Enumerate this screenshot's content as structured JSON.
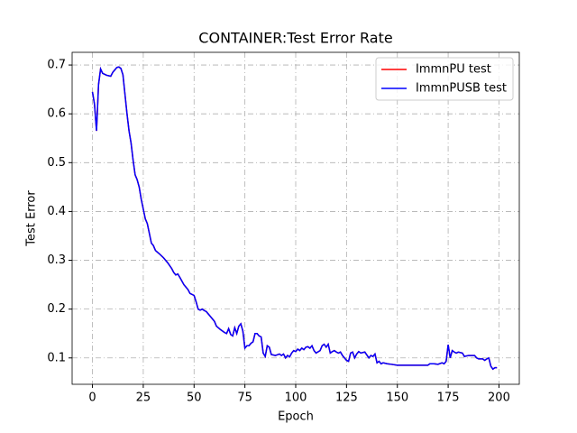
{
  "chart_data": {
    "type": "line",
    "title": "CONTAINER:Test Error Rate",
    "x_label": "Epoch",
    "y_label": "Test Error",
    "x": [
      0,
      1,
      2,
      3,
      4,
      5,
      7,
      9,
      10,
      12,
      13,
      14,
      15,
      16,
      17,
      18,
      19,
      20,
      21,
      22,
      23,
      24,
      25,
      26,
      27,
      28,
      29,
      30,
      31,
      33,
      35,
      37,
      39,
      40,
      41,
      42,
      43,
      45,
      47,
      48,
      50,
      51,
      52,
      53,
      54,
      55,
      56,
      58,
      60,
      61,
      63,
      65,
      66,
      67,
      68,
      69,
      70,
      71,
      72,
      73,
      74,
      75,
      76,
      77,
      78,
      79,
      80,
      81,
      82,
      83,
      84,
      85,
      86,
      87,
      88,
      90,
      92,
      93,
      94,
      95,
      96,
      97,
      98,
      99,
      100,
      101,
      102,
      103,
      104,
      105,
      106,
      107,
      108,
      109,
      110,
      112,
      113,
      114,
      115,
      116,
      117,
      118,
      119,
      120,
      121,
      122,
      123,
      125,
      126,
      127,
      128,
      129,
      130,
      131,
      132,
      134,
      136,
      137,
      138,
      139,
      140,
      141,
      142,
      143,
      145,
      147,
      150,
      155,
      160,
      165,
      166,
      168,
      170,
      172,
      173,
      174,
      175,
      176,
      177,
      178,
      179,
      180,
      182,
      183,
      185,
      187,
      188,
      189,
      190,
      192,
      193,
      194,
      195,
      196,
      197,
      198,
      199
    ],
    "series": [
      {
        "name": "ImmnPU test",
        "color": "#ff0000",
        "values": [
          0.645,
          0.62,
          0.565,
          0.66,
          0.692,
          0.683,
          0.679,
          0.677,
          0.685,
          0.695,
          0.696,
          0.693,
          0.68,
          0.64,
          0.6,
          0.565,
          0.54,
          0.505,
          0.475,
          0.465,
          0.45,
          0.425,
          0.405,
          0.385,
          0.375,
          0.355,
          0.335,
          0.33,
          0.32,
          0.313,
          0.305,
          0.295,
          0.283,
          0.275,
          0.27,
          0.272,
          0.265,
          0.25,
          0.24,
          0.232,
          0.228,
          0.215,
          0.2,
          0.198,
          0.2,
          0.197,
          0.195,
          0.185,
          0.175,
          0.165,
          0.158,
          0.152,
          0.15,
          0.16,
          0.148,
          0.145,
          0.162,
          0.15,
          0.165,
          0.17,
          0.155,
          0.12,
          0.125,
          0.125,
          0.13,
          0.133,
          0.15,
          0.15,
          0.145,
          0.143,
          0.11,
          0.103,
          0.125,
          0.122,
          0.107,
          0.105,
          0.108,
          0.105,
          0.108,
          0.1,
          0.105,
          0.102,
          0.11,
          0.115,
          0.113,
          0.118,
          0.115,
          0.12,
          0.117,
          0.122,
          0.123,
          0.12,
          0.125,
          0.115,
          0.11,
          0.115,
          0.125,
          0.128,
          0.122,
          0.128,
          0.11,
          0.113,
          0.115,
          0.112,
          0.11,
          0.112,
          0.105,
          0.095,
          0.093,
          0.11,
          0.112,
          0.1,
          0.108,
          0.113,
          0.11,
          0.112,
          0.1,
          0.105,
          0.103,
          0.108,
          0.09,
          0.093,
          0.088,
          0.09,
          0.088,
          0.087,
          0.085,
          0.085,
          0.085,
          0.085,
          0.088,
          0.088,
          0.087,
          0.09,
          0.088,
          0.093,
          0.127,
          0.1,
          0.115,
          0.112,
          0.11,
          0.112,
          0.11,
          0.103,
          0.105,
          0.105,
          0.105,
          0.1,
          0.098,
          0.098,
          0.095,
          0.098,
          0.1,
          0.083,
          0.077,
          0.08,
          0.08
        ]
      },
      {
        "name": "ImmnPUSB test",
        "color": "#0000ff",
        "values": [
          0.645,
          0.62,
          0.565,
          0.66,
          0.692,
          0.683,
          0.679,
          0.677,
          0.685,
          0.695,
          0.696,
          0.693,
          0.68,
          0.64,
          0.6,
          0.565,
          0.54,
          0.505,
          0.475,
          0.465,
          0.45,
          0.425,
          0.405,
          0.385,
          0.375,
          0.355,
          0.335,
          0.33,
          0.32,
          0.313,
          0.305,
          0.295,
          0.283,
          0.275,
          0.27,
          0.272,
          0.265,
          0.25,
          0.24,
          0.232,
          0.228,
          0.215,
          0.2,
          0.198,
          0.2,
          0.197,
          0.195,
          0.185,
          0.175,
          0.165,
          0.158,
          0.152,
          0.15,
          0.16,
          0.148,
          0.145,
          0.162,
          0.15,
          0.165,
          0.17,
          0.155,
          0.12,
          0.125,
          0.125,
          0.13,
          0.133,
          0.15,
          0.15,
          0.145,
          0.143,
          0.11,
          0.103,
          0.125,
          0.122,
          0.107,
          0.105,
          0.108,
          0.105,
          0.108,
          0.1,
          0.105,
          0.102,
          0.11,
          0.115,
          0.113,
          0.118,
          0.115,
          0.12,
          0.117,
          0.122,
          0.123,
          0.12,
          0.125,
          0.115,
          0.11,
          0.115,
          0.125,
          0.128,
          0.122,
          0.128,
          0.11,
          0.113,
          0.115,
          0.112,
          0.11,
          0.112,
          0.105,
          0.095,
          0.093,
          0.11,
          0.112,
          0.1,
          0.108,
          0.113,
          0.11,
          0.112,
          0.1,
          0.105,
          0.103,
          0.108,
          0.09,
          0.093,
          0.088,
          0.09,
          0.088,
          0.087,
          0.085,
          0.085,
          0.085,
          0.085,
          0.088,
          0.088,
          0.087,
          0.09,
          0.088,
          0.093,
          0.127,
          0.1,
          0.115,
          0.112,
          0.11,
          0.112,
          0.11,
          0.103,
          0.105,
          0.105,
          0.105,
          0.1,
          0.098,
          0.098,
          0.095,
          0.098,
          0.1,
          0.083,
          0.077,
          0.08,
          0.08
        ]
      }
    ],
    "xlim": [
      -10,
      210
    ],
    "ylim": [
      0.046,
      0.726
    ],
    "xticks": [
      0,
      25,
      50,
      75,
      100,
      125,
      150,
      175,
      200
    ],
    "yticks": [
      0.1,
      0.2,
      0.3,
      0.4,
      0.5,
      0.6,
      0.7
    ],
    "grid": true,
    "legend": "upper right"
  }
}
